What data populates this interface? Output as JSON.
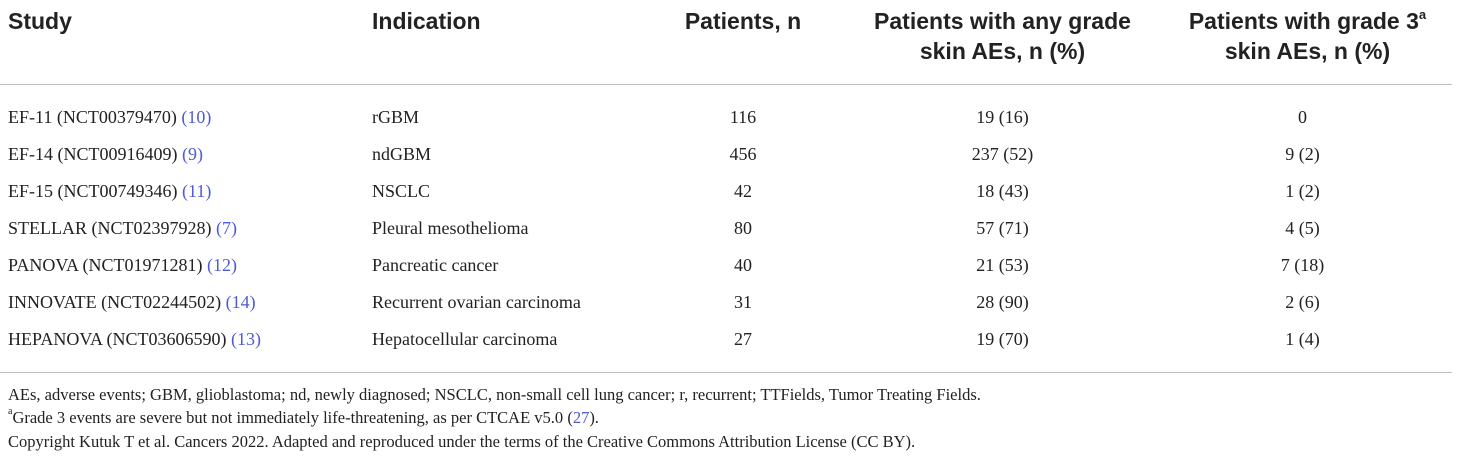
{
  "table": {
    "headers": {
      "study": "Study",
      "indication": "Indication",
      "patients": "Patients, n",
      "any_grade_line1": "Patients with any grade",
      "any_grade_line2": "skin AEs, n (%)",
      "grade3_line1": "Patients with grade 3",
      "grade3_sup": "a",
      "grade3_line2": "skin AEs, n (%)"
    },
    "rows": [
      {
        "study": "EF-11 (NCT00379470) ",
        "ref": "(10)",
        "indication": "rGBM",
        "patients": "116",
        "any_grade": "19 (16)",
        "grade3": "0"
      },
      {
        "study": "EF-14 (NCT00916409) ",
        "ref": "(9)",
        "indication": "ndGBM",
        "patients": "456",
        "any_grade": "237 (52)",
        "grade3": "9 (2)"
      },
      {
        "study": "EF-15 (NCT00749346) ",
        "ref": "(11)",
        "indication": "NSCLC",
        "patients": "42",
        "any_grade": "18 (43)",
        "grade3": "1 (2)"
      },
      {
        "study": "STELLAR (NCT02397928) ",
        "ref": "(7)",
        "indication": "Pleural mesothelioma",
        "patients": "80",
        "any_grade": "57 (71)",
        "grade3": "4 (5)"
      },
      {
        "study": "PANOVA (NCT01971281) ",
        "ref": "(12)",
        "indication": "Pancreatic cancer",
        "patients": "40",
        "any_grade": "21 (53)",
        "grade3": "7 (18)"
      },
      {
        "study": "INNOVATE (NCT02244502) ",
        "ref": "(14)",
        "indication": "Recurrent ovarian carcinoma",
        "patients": "31",
        "any_grade": "28 (90)",
        "grade3": "2 (6)"
      },
      {
        "study": "HEPANOVA (NCT03606590) ",
        "ref": "(13)",
        "indication": "Hepatocellular carcinoma",
        "patients": "27",
        "any_grade": "19 (70)",
        "grade3": "1 (4)"
      }
    ]
  },
  "footnotes": {
    "abbreviations": "AEs, adverse events; GBM, glioblastoma; nd, newly diagnosed; NSCLC, non-small cell lung cancer; r, recurrent; TTFields, Tumor Treating Fields.",
    "note_a_sup": "a",
    "note_a_text": "Grade 3 events are severe but not immediately life-threatening, as per CTCAE v5.0 ",
    "note_a_ref": "27",
    "note_a_open": "(",
    "note_a_close": ").",
    "copyright": "Copyright Kutuk T et al. Cancers 2022. Adapted and reproduced under the terms of the Creative Commons Attribution License (CC BY)."
  },
  "colors": {
    "text": "#222222",
    "link": "#4e5bd4",
    "rule": "#bdbdbd"
  }
}
